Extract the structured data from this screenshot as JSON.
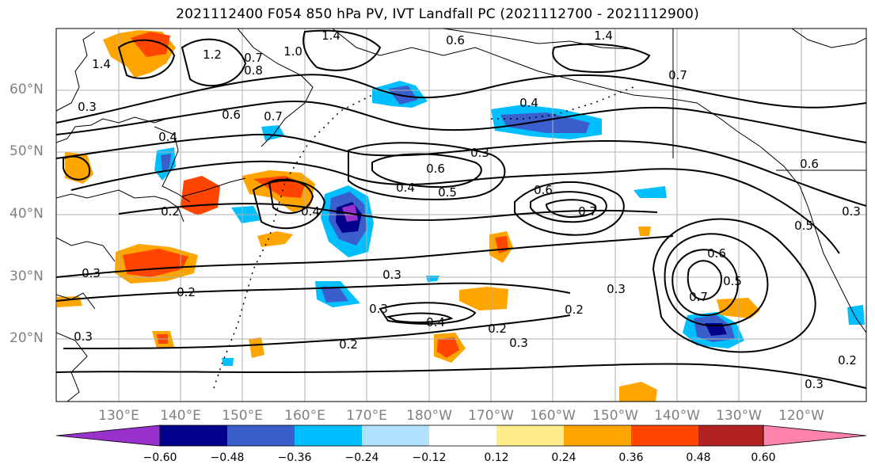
{
  "title": "2021112400 F054 850 hPa PV, IVT Landfall PC (2021112700 - 2021112900)",
  "latitudes": [
    "60°N",
    "50°N",
    "40°N",
    "30°N",
    "20°N"
  ],
  "longitudes": [
    "130°E",
    "140°E",
    "150°E",
    "160°E",
    "170°E",
    "180°W",
    "170°W",
    "160°W",
    "150°W",
    "140°W",
    "130°W",
    "120°W"
  ],
  "colorbar": {
    "ticks": [
      "−0.60",
      "−0.48",
      "−0.36",
      "−0.24",
      "−0.12",
      "0.12",
      "0.24",
      "0.36",
      "0.48",
      "0.60"
    ],
    "colors": {
      "below_min": "#9932cc",
      "b1": "#00008b",
      "b2": "#3a5fcd",
      "b3": "#00bfff",
      "b4": "#b0e2ff",
      "neutral": "#ffffff",
      "p1": "#ffec8b",
      "p2": "#ffa500",
      "p3": "#ff4500",
      "p4": "#b22222",
      "above_max": "#ff82ab"
    }
  },
  "contour_labels": [
    "1.4",
    "1.2",
    "0.7",
    "0.8",
    "1.0",
    "1.4",
    "0.6",
    "1.4",
    "0.7",
    "0.4",
    "0.6",
    "0.7",
    "0.4",
    "0.3",
    "0.6",
    "0.4",
    "0.5",
    "0.6",
    "0.7",
    "0.4",
    "0.3",
    "0.3",
    "0.2",
    "0.3",
    "0.4",
    "0.2",
    "0.3",
    "0.3",
    "0.2",
    "0.6",
    "0.5",
    "0.7",
    "0.2",
    "0.3",
    "0.2",
    "0.3",
    "0.6",
    "0.5",
    "0.3",
    "0.2",
    "0.3"
  ]
}
